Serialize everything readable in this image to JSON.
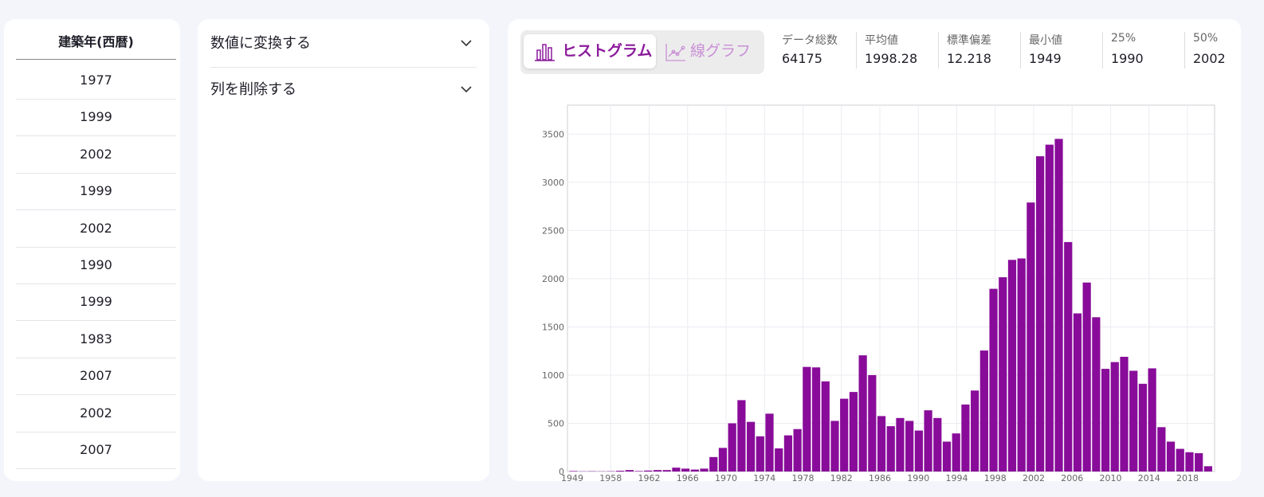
{
  "column": {
    "header": "建築年(西暦)",
    "values": [
      "1977",
      "1999",
      "2002",
      "1999",
      "2002",
      "1990",
      "1999",
      "1983",
      "2007",
      "2002",
      "2007"
    ]
  },
  "operations": [
    {
      "label": "数値に変換する"
    },
    {
      "label": "列を削除する"
    }
  ],
  "view_toggle": {
    "histogram_label": "ヒストグラム",
    "line_label": "線グラフ",
    "active": "histogram"
  },
  "stats": [
    {
      "label": "データ総数",
      "value": "64175"
    },
    {
      "label": "平均値",
      "value": "1998.28"
    },
    {
      "label": "標準偏差",
      "value": "12.218"
    },
    {
      "label": "最小値",
      "value": "1949"
    },
    {
      "label": "25%",
      "value": "1990"
    },
    {
      "label": "50%",
      "value": "2002"
    }
  ],
  "colors": {
    "accent": "#8c1a9c",
    "bar": "#880c99",
    "accent_light": "#c98fd6"
  },
  "chart_data": {
    "type": "bar",
    "title": "",
    "xlabel": "",
    "ylabel": "",
    "ylim": [
      0,
      3800
    ],
    "grid": true,
    "x_tick_labels": [
      "1949",
      "1958",
      "1962",
      "1966",
      "1970",
      "1974",
      "1978",
      "1982",
      "1986",
      "1990",
      "1994",
      "1998",
      "2002",
      "2006",
      "2010",
      "2014",
      "2018"
    ],
    "y_tick_labels": [
      "0",
      "500",
      "1000",
      "1500",
      "2000",
      "2500",
      "3000",
      "3500"
    ],
    "values": [
      5,
      2,
      3,
      2,
      3,
      8,
      15,
      5,
      10,
      15,
      15,
      40,
      30,
      20,
      30,
      150,
      245,
      500,
      740,
      515,
      365,
      600,
      240,
      375,
      440,
      1085,
      1080,
      935,
      525,
      755,
      825,
      1205,
      1000,
      575,
      470,
      555,
      525,
      425,
      635,
      555,
      310,
      395,
      695,
      840,
      1255,
      1895,
      2015,
      2195,
      2210,
      2790,
      3270,
      3390,
      3450,
      2380,
      1640,
      1960,
      1600,
      1065,
      1135,
      1190,
      1045,
      910,
      1070,
      460,
      310,
      235,
      200,
      190,
      55
    ]
  }
}
